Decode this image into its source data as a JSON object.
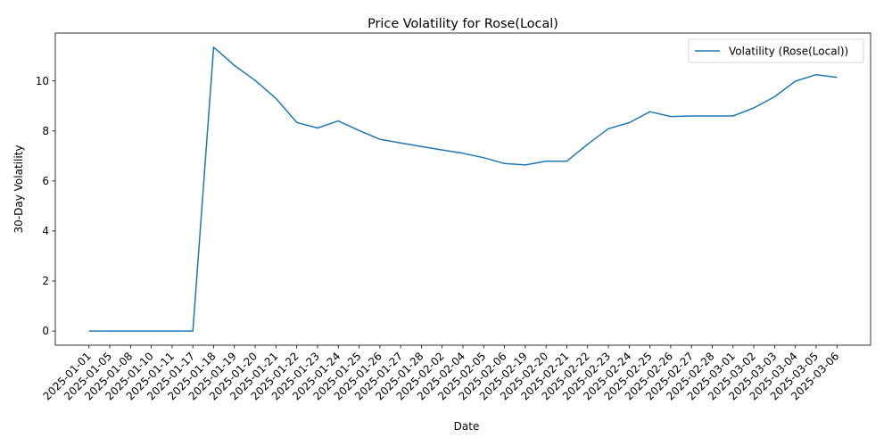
{
  "chart_data": {
    "type": "line",
    "title": "Price Volatility for Rose(Local)",
    "xlabel": "Date",
    "ylabel": "30-Day Volatility",
    "x": [
      "2025-01-01",
      "2025-01-05",
      "2025-01-08",
      "2025-01-10",
      "2025-01-11",
      "2025-01-17",
      "2025-01-18",
      "2025-01-19",
      "2025-01-20",
      "2025-01-21",
      "2025-01-22",
      "2025-01-23",
      "2025-01-24",
      "2025-01-25",
      "2025-01-26",
      "2025-01-27",
      "2025-01-28",
      "2025-02-02",
      "2025-02-04",
      "2025-02-05",
      "2025-02-06",
      "2025-02-19",
      "2025-02-20",
      "2025-02-21",
      "2025-02-22",
      "2025-02-23",
      "2025-02-24",
      "2025-02-25",
      "2025-02-26",
      "2025-02-27",
      "2025-02-28",
      "2025-03-01",
      "2025-03-02",
      "2025-03-03",
      "2025-03-04",
      "2025-03-05",
      "2025-03-06"
    ],
    "series": [
      {
        "name": "Volatility (Rose(Local))",
        "color": "#1f77b4",
        "values": [
          0,
          0,
          0,
          0,
          0,
          0,
          11.35,
          10.62,
          10.02,
          9.3,
          8.34,
          8.12,
          8.4,
          8.02,
          7.67,
          7.52,
          7.38,
          7.24,
          7.11,
          6.93,
          6.7,
          6.64,
          6.79,
          6.79,
          7.47,
          8.09,
          8.33,
          8.77,
          8.58,
          8.6,
          8.6,
          8.6,
          8.92,
          9.37,
          9.99,
          10.25,
          10.14
        ]
      }
    ],
    "yticks": [
      0,
      2,
      4,
      6,
      8,
      10
    ],
    "ylim": [
      -0.5675,
      11.9175
    ],
    "grid": false,
    "legend": "top-right"
  }
}
